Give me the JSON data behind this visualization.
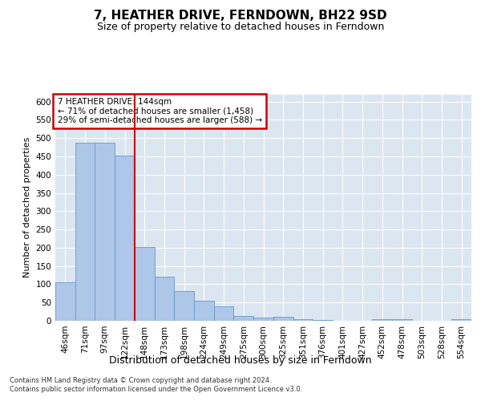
{
  "title": "7, HEATHER DRIVE, FERNDOWN, BH22 9SD",
  "subtitle": "Size of property relative to detached houses in Ferndown",
  "xlabel": "Distribution of detached houses by size in Ferndown",
  "ylabel": "Number of detached properties",
  "footer_line1": "Contains HM Land Registry data © Crown copyright and database right 2024.",
  "footer_line2": "Contains public sector information licensed under the Open Government Licence v3.0.",
  "categories": [
    "46sqm",
    "71sqm",
    "97sqm",
    "122sqm",
    "148sqm",
    "173sqm",
    "198sqm",
    "224sqm",
    "249sqm",
    "275sqm",
    "300sqm",
    "325sqm",
    "351sqm",
    "376sqm",
    "401sqm",
    "427sqm",
    "452sqm",
    "478sqm",
    "503sqm",
    "528sqm",
    "554sqm"
  ],
  "values": [
    105,
    487,
    487,
    453,
    201,
    120,
    82,
    55,
    40,
    14,
    8,
    10,
    4,
    2,
    0,
    0,
    5,
    5,
    0,
    0,
    5
  ],
  "bar_color": "#aec6e8",
  "bar_edge_color": "#6699cc",
  "vline_x": 3.5,
  "vline_color": "#cc0000",
  "annotation_title": "7 HEATHER DRIVE: 144sqm",
  "annotation_line1": "← 71% of detached houses are smaller (1,458)",
  "annotation_line2": "29% of semi-detached houses are larger (588) →",
  "annotation_box_color": "#cc0000",
  "ylim": [
    0,
    620
  ],
  "yticks": [
    0,
    50,
    100,
    150,
    200,
    250,
    300,
    350,
    400,
    450,
    500,
    550,
    600
  ],
  "bg_color": "#dce6f0",
  "title_fontsize": 11,
  "subtitle_fontsize": 9,
  "ylabel_fontsize": 8,
  "xlabel_fontsize": 9,
  "tick_fontsize": 7.5,
  "footer_fontsize": 6,
  "annotation_fontsize": 7.5
}
